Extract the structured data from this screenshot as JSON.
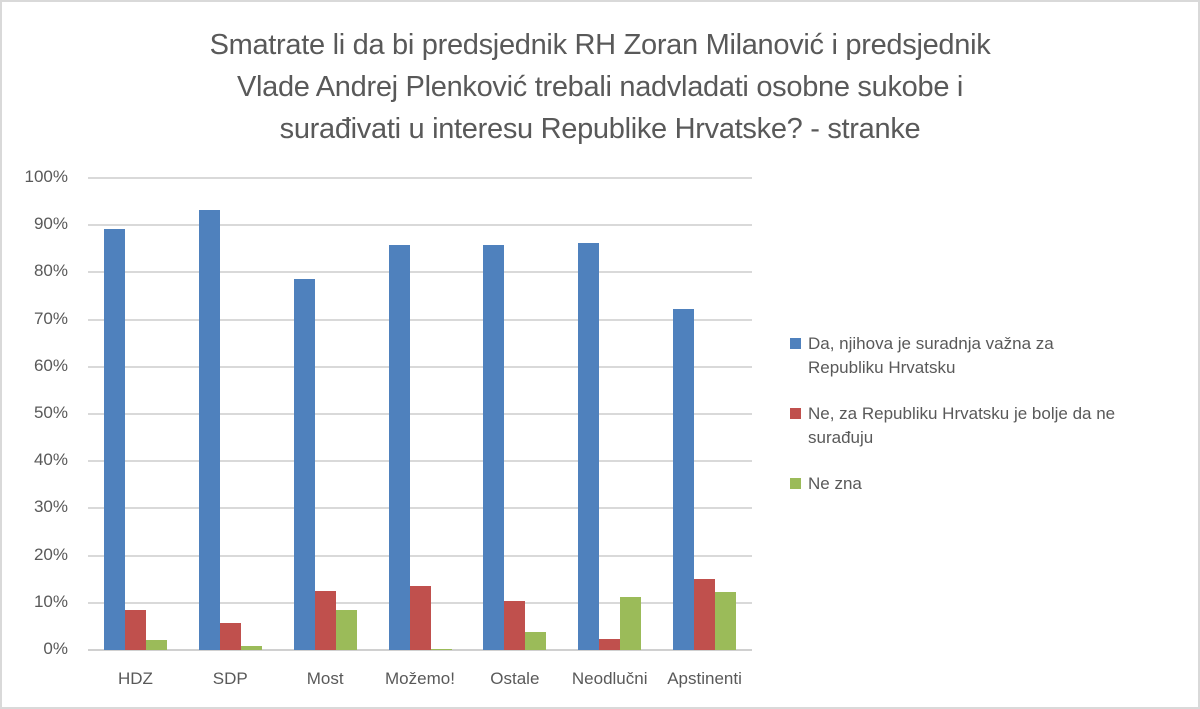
{
  "title_lines": [
    "Smatrate li da bi predsjednik RH Zoran Milanović i predsjednik",
    "Vlade Andrej Plenković trebali nadvladati osobne sukobe i",
    "surađivati u interesu Republike Hrvatske? - stranke"
  ],
  "y_ticks": [
    "100%",
    "90%",
    "80%",
    "70%",
    "60%",
    "50%",
    "40%",
    "30%",
    "20%",
    "10%",
    "0%"
  ],
  "legend": [
    {
      "label_lines": [
        "Da, njihova je suradnja važna za",
        "Republiku Hrvatsku"
      ],
      "color": "#4f81bd"
    },
    {
      "label_lines": [
        "Ne, za Republiku Hrvatsku je bolje da ne",
        "surađuju"
      ],
      "color": "#c0504d"
    },
    {
      "label_lines": [
        "Ne zna"
      ],
      "color": "#9bbb59"
    }
  ],
  "chart_data": {
    "type": "bar",
    "title": "Smatrate li da bi predsjednik RH Zoran Milanović i predsjednik Vlade Andrej Plenković trebali nadvladati osobne sukobe i surađivati u interesu Republike Hrvatske? - stranke",
    "xlabel": "",
    "ylabel": "",
    "ylim": [
      0,
      100
    ],
    "y_format": "percent",
    "grid": true,
    "legend_position": "right",
    "categories": [
      "HDZ",
      "SDP",
      "Most",
      "Možemo!",
      "Ostale",
      "Neodlučni",
      "Apstinenti"
    ],
    "series": [
      {
        "name": "Da, njihova je suradnja važna za Republiku Hrvatsku",
        "color": "#4f81bd",
        "values": [
          89.1,
          93.2,
          78.7,
          85.9,
          85.7,
          86.2,
          72.2
        ]
      },
      {
        "name": "Ne, za Republiku Hrvatsku je bolje da ne surađuju",
        "color": "#c0504d",
        "values": [
          8.5,
          5.8,
          12.6,
          13.5,
          10.4,
          2.3,
          15.1
        ]
      },
      {
        "name": "Ne zna",
        "color": "#9bbb59",
        "values": [
          2.2,
          0.9,
          8.5,
          0.3,
          3.8,
          11.3,
          12.3
        ]
      }
    ]
  }
}
